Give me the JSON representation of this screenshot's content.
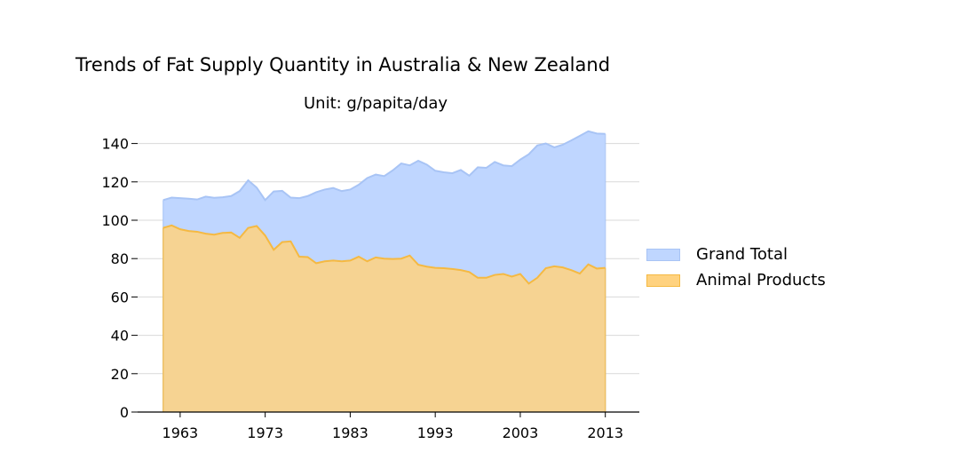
{
  "chart_data": {
    "type": "area",
    "title": "Trends of Fat Supply Quantity in Australia & New Zealand",
    "subtitle": "Unit: g/papita/day",
    "xlabel": "",
    "ylabel": "",
    "xlim": [
      1958,
      2017
    ],
    "ylim": [
      0,
      150
    ],
    "xticks": [
      1963,
      1973,
      1983,
      1993,
      2003,
      2013
    ],
    "yticks": [
      0,
      20,
      40,
      60,
      80,
      100,
      120,
      140
    ],
    "grid": "horizontal",
    "legend_position": "right",
    "x": [
      1961,
      1962,
      1963,
      1964,
      1965,
      1966,
      1967,
      1968,
      1969,
      1970,
      1971,
      1972,
      1973,
      1974,
      1975,
      1976,
      1977,
      1978,
      1979,
      1980,
      1981,
      1982,
      1983,
      1984,
      1985,
      1986,
      1987,
      1988,
      1989,
      1990,
      1991,
      1992,
      1993,
      1994,
      1995,
      1996,
      1997,
      1998,
      1999,
      2000,
      2001,
      2002,
      2003,
      2004,
      2005,
      2006,
      2007,
      2008,
      2009,
      2010,
      2011,
      2012,
      2013
    ],
    "series": [
      {
        "name": "Grand Total",
        "color": "#a8c4f5",
        "fill": "#bfd6ff",
        "values": [
          110.5,
          111.8,
          111.5,
          111.2,
          110.8,
          112.3,
          111.7,
          112.0,
          112.6,
          115.2,
          120.8,
          117.0,
          110.5,
          115.0,
          115.3,
          111.8,
          111.5,
          112.6,
          114.6,
          116.0,
          116.8,
          115.2,
          116.0,
          118.5,
          122.0,
          123.8,
          123.0,
          126.0,
          129.6,
          128.6,
          131.0,
          129.0,
          125.8,
          125.0,
          124.5,
          126.2,
          123.2,
          127.6,
          127.3,
          130.4,
          128.6,
          128.2,
          131.6,
          134.4,
          139.0,
          140.0,
          138.0,
          139.4,
          141.6,
          144.0,
          146.4,
          145.2,
          145.0
        ]
      },
      {
        "name": "Animal Products",
        "color": "#f5b942",
        "fill": "#ffd27f",
        "values": [
          96.0,
          97.3,
          95.3,
          94.4,
          94.0,
          93.0,
          92.5,
          93.4,
          93.6,
          90.8,
          96.0,
          97.0,
          92.0,
          84.6,
          88.6,
          89.0,
          81.0,
          80.8,
          77.6,
          78.6,
          79.0,
          78.6,
          79.0,
          81.0,
          78.6,
          80.6,
          80.0,
          79.8,
          80.0,
          81.6,
          76.8,
          75.8,
          75.2,
          75.0,
          74.6,
          74.0,
          73.0,
          70.0,
          70.0,
          71.5,
          72.0,
          70.6,
          72.0,
          67.0,
          70.0,
          75.0,
          76.0,
          75.4,
          74.0,
          72.2,
          77.0,
          74.8,
          75.2
        ]
      }
    ]
  }
}
